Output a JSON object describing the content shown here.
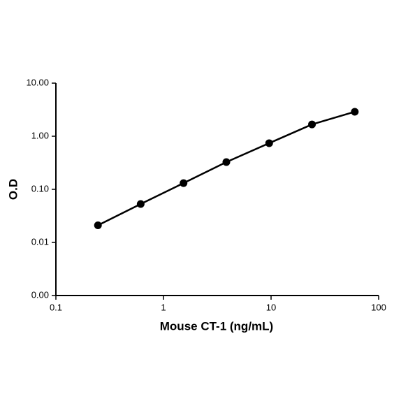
{
  "chart_data": {
    "type": "line",
    "x_label": "Mouse CT-1 (ng/mL)",
    "y_label": "O.D",
    "x_scale": "log",
    "y_scale": "log",
    "xlim": [
      0.1,
      100
    ],
    "ylim": [
      0.001,
      10
    ],
    "xticks": [
      0.1,
      1,
      10,
      100
    ],
    "yticks": [
      {
        "value": 10,
        "label": "10.00"
      },
      {
        "value": 1,
        "label": "1.00"
      },
      {
        "value": 0.1,
        "label": "0.10"
      },
      {
        "value": 0.01,
        "label": "0.01"
      },
      {
        "value": 0.001,
        "label": "0.00"
      }
    ],
    "x": [
      0.246,
      0.614,
      1.536,
      3.84,
      9.6,
      24,
      60
    ],
    "series": [
      {
        "color": "#000000",
        "values": [
          0.021,
          0.053,
          0.131,
          0.326,
          0.74,
          1.67,
          2.89
        ]
      }
    ]
  }
}
